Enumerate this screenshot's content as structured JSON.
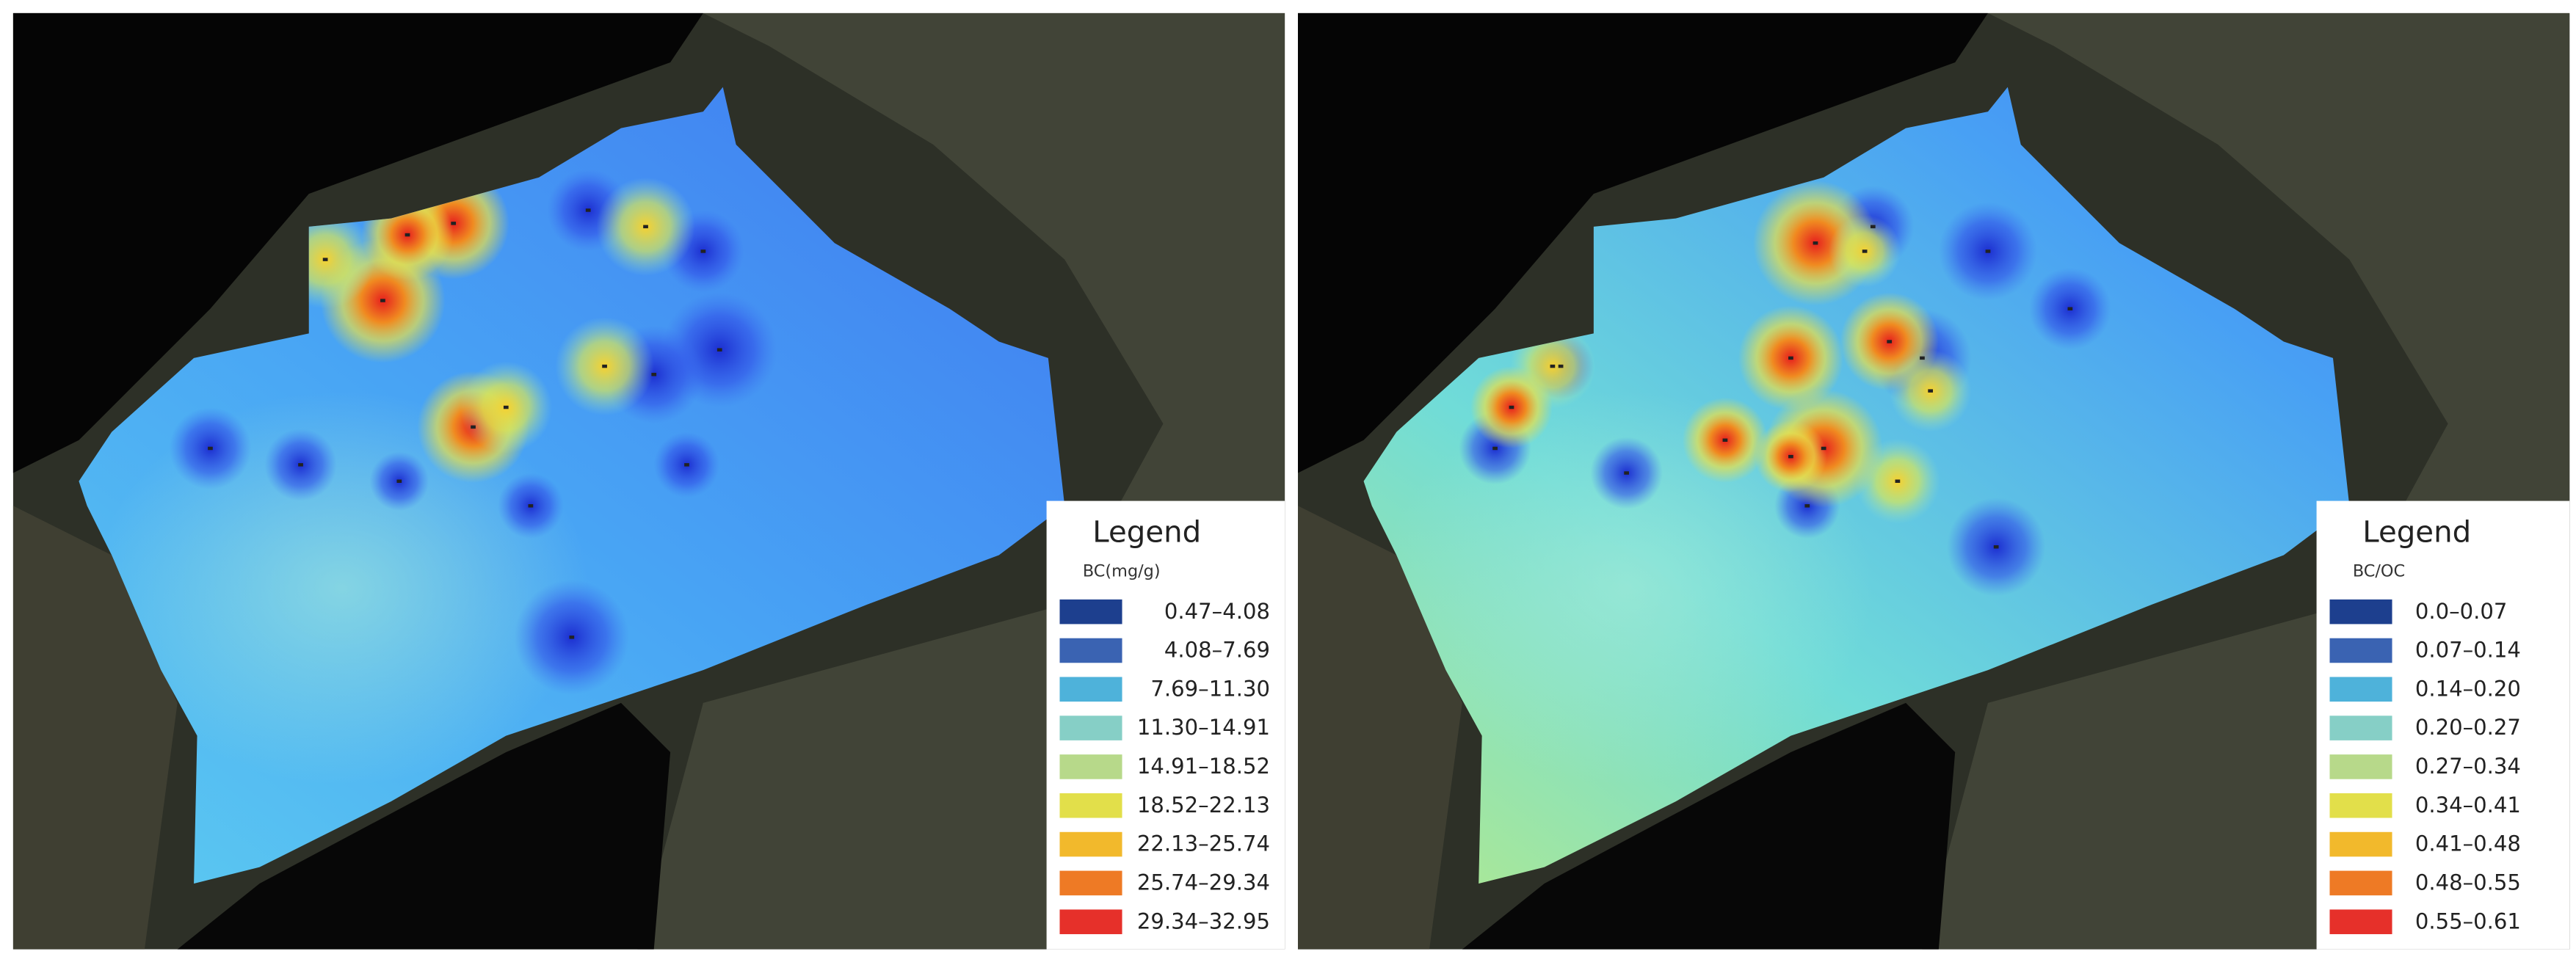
{
  "panels": [
    {
      "legend": {
        "title": "Legend",
        "subtitle": "BC(mg/g)",
        "classes": [
          {
            "label": "0.47–4.08",
            "color": "#1d3f8e"
          },
          {
            "label": "4.08–7.69",
            "color": "#3a63b2"
          },
          {
            "label": "7.69–11.30",
            "color": "#4eb2da"
          },
          {
            "label": "11.30–14.91",
            "color": "#86cfc6"
          },
          {
            "label": "14.91–18.52",
            "color": "#b7d98a"
          },
          {
            "label": "18.52–22.13",
            "color": "#e2df4a"
          },
          {
            "label": "22.13–25.74",
            "color": "#f2b92c"
          },
          {
            "label": "25.74–29.34",
            "color": "#ee7a25"
          },
          {
            "label": "29.34–32.95",
            "color": "#e6302a"
          }
        ]
      }
    },
    {
      "legend": {
        "title": "Legend",
        "subtitle": "BC/OC",
        "classes": [
          {
            "label": "0.0–0.07",
            "color": "#1d3f8e"
          },
          {
            "label": "0.07–0.14",
            "color": "#3a63b2"
          },
          {
            "label": "0.14–0.20",
            "color": "#4eb2da"
          },
          {
            "label": "0.20–0.27",
            "color": "#86cfc6"
          },
          {
            "label": "0.27–0.34",
            "color": "#b7d98a"
          },
          {
            "label": "0.34–0.41",
            "color": "#e2df4a"
          },
          {
            "label": "0.41–0.48",
            "color": "#f2b92c"
          },
          {
            "label": "0.48–0.55",
            "color": "#ee7a25"
          },
          {
            "label": "0.55–0.61",
            "color": "#e6302a"
          }
        ]
      }
    }
  ]
}
